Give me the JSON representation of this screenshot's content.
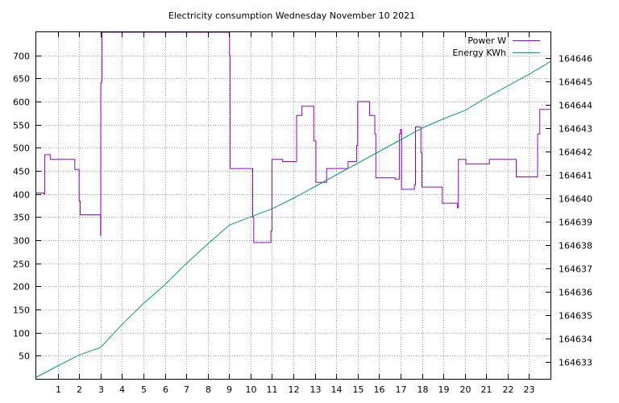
{
  "chart_data": {
    "type": "line",
    "title": "Electricity consumption Wednesday November 10 2021",
    "xlabel": "",
    "ylabel": "",
    "xlim": [
      0,
      24
    ],
    "ylim": [
      0,
      750
    ],
    "y2lim": [
      164632.28,
      164647.1
    ],
    "grid": true,
    "legend_position": "top-right",
    "x_ticks": [
      1,
      2,
      3,
      4,
      5,
      6,
      7,
      8,
      9,
      10,
      11,
      12,
      13,
      14,
      15,
      16,
      17,
      18,
      19,
      20,
      21,
      22,
      23
    ],
    "y_ticks": [
      50,
      100,
      150,
      200,
      250,
      300,
      350,
      400,
      450,
      500,
      550,
      600,
      650,
      700
    ],
    "y2_ticks": [
      164633,
      164634,
      164635,
      164636,
      164637,
      164638,
      164639,
      164640,
      164641,
      164642,
      164643,
      164644,
      164645,
      164646
    ],
    "series": [
      {
        "name": "Power W",
        "axis": "y",
        "color": "#9400d3",
        "step": true,
        "points": [
          [
            0.0,
            402
          ],
          [
            0.35,
            400
          ],
          [
            0.4,
            485
          ],
          [
            0.65,
            475
          ],
          [
            1.75,
            475
          ],
          [
            1.8,
            453
          ],
          [
            2.0,
            385
          ],
          [
            2.05,
            355
          ],
          [
            2.95,
            355
          ],
          [
            3.0,
            310
          ],
          [
            3.01,
            640
          ],
          [
            3.05,
            645
          ],
          [
            3.07,
            750
          ],
          [
            9.0,
            750
          ],
          [
            9.02,
            700
          ],
          [
            9.05,
            455
          ],
          [
            10.05,
            455
          ],
          [
            10.1,
            350
          ],
          [
            10.15,
            295
          ],
          [
            10.9,
            295
          ],
          [
            10.95,
            320
          ],
          [
            11.0,
            475
          ],
          [
            11.4,
            475
          ],
          [
            11.5,
            470
          ],
          [
            12.1,
            470
          ],
          [
            12.15,
            570
          ],
          [
            12.4,
            590
          ],
          [
            12.9,
            590
          ],
          [
            12.95,
            515
          ],
          [
            13.05,
            425
          ],
          [
            13.5,
            425
          ],
          [
            13.55,
            455
          ],
          [
            14.5,
            455
          ],
          [
            14.55,
            470
          ],
          [
            14.9,
            470
          ],
          [
            14.95,
            505
          ],
          [
            15.0,
            600
          ],
          [
            15.5,
            600
          ],
          [
            15.55,
            570
          ],
          [
            15.75,
            570
          ],
          [
            15.8,
            530
          ],
          [
            15.85,
            435
          ],
          [
            16.7,
            435
          ],
          [
            16.75,
            432
          ],
          [
            16.9,
            432
          ],
          [
            16.95,
            530
          ],
          [
            17.0,
            540
          ],
          [
            17.05,
            410
          ],
          [
            17.6,
            410
          ],
          [
            17.65,
            420
          ],
          [
            17.7,
            545
          ],
          [
            17.9,
            545
          ],
          [
            17.95,
            490
          ],
          [
            18.0,
            415
          ],
          [
            18.9,
            415
          ],
          [
            18.95,
            380
          ],
          [
            19.6,
            380
          ],
          [
            19.65,
            370
          ],
          [
            19.7,
            475
          ],
          [
            20.0,
            475
          ],
          [
            20.05,
            465
          ],
          [
            21.1,
            465
          ],
          [
            21.15,
            475
          ],
          [
            22.35,
            475
          ],
          [
            22.4,
            437
          ],
          [
            23.35,
            437
          ],
          [
            23.4,
            530
          ],
          [
            23.5,
            583
          ],
          [
            24.0,
            583
          ]
        ]
      },
      {
        "name": "Energy KWh",
        "axis": "y2",
        "color": "#009e73",
        "step": false,
        "points": [
          [
            0.0,
            164632.35
          ],
          [
            1.0,
            164632.83
          ],
          [
            2.0,
            164633.3
          ],
          [
            3.0,
            164633.62
          ],
          [
            4.0,
            164634.6
          ],
          [
            5.0,
            164635.5
          ],
          [
            6.0,
            164636.3
          ],
          [
            7.0,
            164637.2
          ],
          [
            8.0,
            164638.05
          ],
          [
            9.0,
            164638.85
          ],
          [
            10.0,
            164639.2
          ],
          [
            11.0,
            164639.55
          ],
          [
            12.0,
            164640.0
          ],
          [
            13.0,
            164640.5
          ],
          [
            14.0,
            164641.0
          ],
          [
            15.0,
            164641.5
          ],
          [
            16.0,
            164642.0
          ],
          [
            17.0,
            164642.5
          ],
          [
            18.0,
            164643.0
          ],
          [
            19.0,
            164643.4
          ],
          [
            20.0,
            164643.75
          ],
          [
            21.0,
            164644.3
          ],
          [
            22.0,
            164644.8
          ],
          [
            23.0,
            164645.3
          ],
          [
            24.0,
            164645.85
          ]
        ]
      }
    ]
  }
}
